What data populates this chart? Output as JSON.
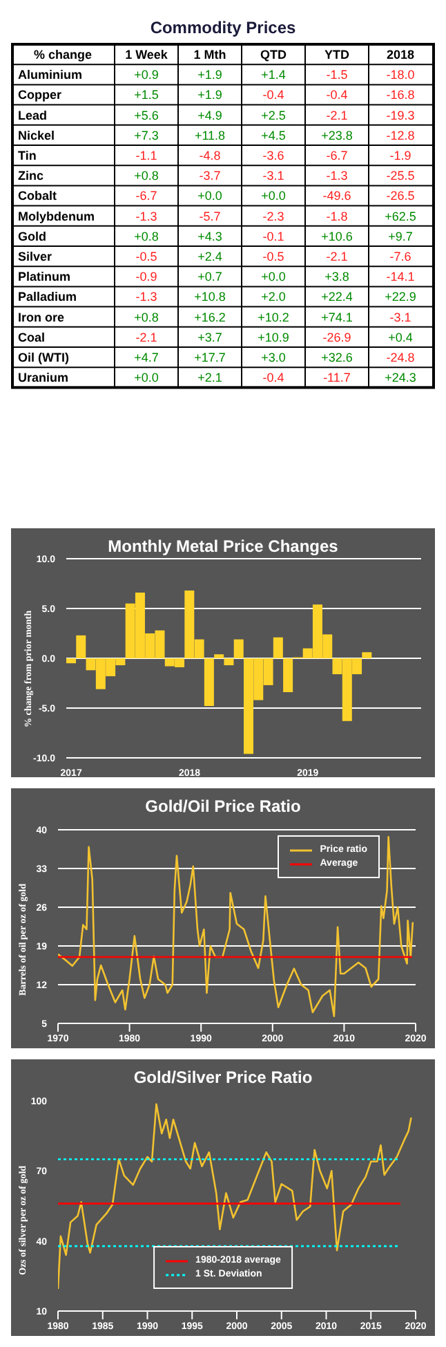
{
  "chart_data": [
    {
      "type": "heatmap",
      "title": "Commodity Prices",
      "ylabel": "% change",
      "categories": [
        "1 Week",
        "1 Mth",
        "QTD",
        "YTD",
        "2018"
      ],
      "y_categories": [
        "Aluminium",
        "Copper",
        "Lead",
        "Nickel",
        "Tin",
        "Zinc",
        "Cobalt",
        "Molybdenum",
        "Gold",
        "Silver",
        "Platinum",
        "Palladium",
        "Iron ore",
        "Coal",
        "Oil (WTI)",
        "Uranium"
      ],
      "cells": [
        [
          0.9,
          1.9,
          1.4,
          -1.5,
          -18.0
        ],
        [
          1.5,
          1.9,
          -0.4,
          -0.4,
          -16.8
        ],
        [
          5.6,
          4.9,
          2.5,
          -2.1,
          -19.3
        ],
        [
          7.3,
          11.8,
          4.5,
          23.8,
          -12.8
        ],
        [
          -1.1,
          -4.8,
          -3.6,
          -6.7,
          -1.9
        ],
        [
          0.8,
          -3.7,
          -3.1,
          -1.3,
          -25.5
        ],
        [
          -6.7,
          0.0,
          0.0,
          -49.6,
          -26.5
        ],
        [
          -1.3,
          -5.7,
          -2.3,
          -1.8,
          62.5
        ],
        [
          0.8,
          4.3,
          -0.1,
          10.6,
          9.7
        ],
        [
          -0.5,
          2.4,
          -0.5,
          -2.1,
          -7.6
        ],
        [
          -0.9,
          0.7,
          0.0,
          3.8,
          -14.1
        ],
        [
          -1.3,
          10.8,
          2.0,
          22.4,
          22.9
        ],
        [
          0.8,
          16.2,
          10.2,
          74.1,
          -3.1
        ],
        [
          -2.1,
          3.7,
          10.9,
          -26.9,
          0.4
        ],
        [
          4.7,
          17.7,
          3.0,
          32.6,
          -24.8
        ],
        [
          0.0,
          2.1,
          -0.4,
          -11.7,
          24.3
        ]
      ],
      "cell_labels": [
        [
          "+0.9",
          "+1.9",
          "+1.4",
          "-1.5",
          "-18.0"
        ],
        [
          "+1.5",
          "+1.9",
          "-0.4",
          "-0.4",
          "-16.8"
        ],
        [
          "+5.6",
          "+4.9",
          "+2.5",
          "-2.1",
          "-19.3"
        ],
        [
          "+7.3",
          "+11.8",
          "+4.5",
          "+23.8",
          "-12.8"
        ],
        [
          "-1.1",
          "-4.8",
          "-3.6",
          "-6.7",
          "-1.9"
        ],
        [
          "+0.8",
          "-3.7",
          "-3.1",
          "-1.3",
          "-25.5"
        ],
        [
          "-6.7",
          "+0.0",
          "+0.0",
          "-49.6",
          "-26.5"
        ],
        [
          "-1.3",
          "-5.7",
          "-2.3",
          "-1.8",
          "+62.5"
        ],
        [
          "+0.8",
          "+4.3",
          "-0.1",
          "+10.6",
          "+9.7"
        ],
        [
          "-0.5",
          "+2.4",
          "-0.5",
          "-2.1",
          "-7.6"
        ],
        [
          "-0.9",
          "+0.7",
          "+0.0",
          "+3.8",
          "-14.1"
        ],
        [
          "-1.3",
          "+10.8",
          "+2.0",
          "+22.4",
          "+22.9"
        ],
        [
          "+0.8",
          "+16.2",
          "+10.2",
          "+74.1",
          "-3.1"
        ],
        [
          "-2.1",
          "+3.7",
          "+10.9",
          "-26.9",
          "+0.4"
        ],
        [
          "+4.7",
          "+17.7",
          "+3.0",
          "+32.6",
          "-24.8"
        ],
        [
          "+0.0",
          "+2.1",
          "-0.4",
          "-11.7",
          "+24.3"
        ]
      ]
    },
    {
      "type": "bar",
      "title": "Monthly Metal Price Changes",
      "ylabel": "% change from prior month",
      "color": "#ffd42a",
      "grid": "y",
      "categories": [
        "2017",
        null,
        null,
        null,
        null,
        null,
        null,
        null,
        null,
        null,
        null,
        null,
        "2018",
        null,
        null,
        null,
        null,
        null,
        null,
        null,
        null,
        null,
        null,
        null,
        "2019",
        null,
        null,
        null,
        null,
        null,
        null,
        null,
        null,
        null,
        null,
        null
      ],
      "values": [
        -0.5,
        2.3,
        -1.2,
        -3.1,
        -1.8,
        -0.7,
        5.5,
        6.6,
        2.5,
        2.8,
        -0.8,
        -0.9,
        6.8,
        1.9,
        -4.8,
        0.4,
        -0.7,
        1.9,
        -9.6,
        -4.2,
        -2.7,
        2.1,
        -3.4,
        0.1,
        1.0,
        5.4,
        2.4,
        -1.6,
        -6.3,
        -1.6,
        0.6,
        null,
        null,
        null,
        null,
        null
      ],
      "ylim": [
        -10,
        10
      ],
      "yticks": [
        {
          "value": -10,
          "label": "-10.0"
        },
        {
          "value": -5,
          "label": "-5.0"
        },
        {
          "value": 0,
          "label": "0.0"
        },
        {
          "value": 5,
          "label": "5.0"
        },
        {
          "value": 10,
          "label": "10.0"
        }
      ]
    },
    {
      "type": "line",
      "title": "Gold/Oil Price Ratio",
      "ylabel": "Barrels of oil per oz of gold",
      "grid": "y",
      "legend": "top right",
      "xlim": [
        1970,
        2020
      ],
      "xticks": [
        1970,
        1980,
        1990,
        2000,
        2010,
        2020
      ],
      "ylim": [
        5,
        40
      ],
      "yticks": [
        5,
        12,
        19,
        26,
        33,
        40
      ],
      "series": [
        {
          "name": "Price ratio",
          "color": "#f2c230",
          "x": [
            1970,
            1971,
            1972,
            1973,
            1973.5,
            1974,
            1974.3,
            1974.8,
            1975.2,
            1975.5,
            1976,
            1977,
            1978,
            1979,
            1979.4,
            1980,
            1980.7,
            1981.5,
            1982.1,
            1982.8,
            1983.4,
            1984,
            1985,
            1985.3,
            1986,
            1986.3,
            1986.6,
            1987.3,
            1988,
            1988.5,
            1988.9,
            1989.5,
            1989.8,
            1990.4,
            1990.8,
            1991.3,
            1992,
            1993,
            1994,
            1994.1,
            1995,
            1996,
            1997,
            1998,
            1998.7,
            1999,
            1999.7,
            2000.2,
            2000.8,
            2002,
            2003,
            2004,
            2005,
            2005.6,
            2007,
            2008,
            2008.6,
            2009.1,
            2009.5,
            2010,
            2011,
            2012,
            2013,
            2013.8,
            2014.8,
            2015.2,
            2015.5,
            2016,
            2016.2,
            2016.6,
            2017,
            2017.5,
            2018,
            2018.5,
            2018.8,
            2018.9,
            2019.3,
            2019.6
          ],
          "values": [
            17.5,
            16.5,
            15.4,
            17,
            22.8,
            22,
            36.9,
            31,
            9.2,
            13,
            15.5,
            12,
            8.8,
            11,
            7.5,
            13,
            20.8,
            13,
            9.6,
            12,
            17.1,
            13,
            12,
            10.5,
            12,
            29.2,
            35.3,
            25,
            27,
            30,
            33.4,
            22,
            19,
            22,
            10.5,
            19,
            17,
            17,
            22,
            28.6,
            23,
            22,
            18,
            15,
            20,
            28,
            19,
            12.7,
            7.9,
            12,
            14.9,
            12,
            11,
            7,
            10,
            11,
            6.3,
            22.4,
            14,
            14,
            15,
            16,
            15,
            11.6,
            13,
            26.2,
            24,
            29,
            38.7,
            30,
            23,
            26,
            19,
            17,
            15.8,
            23.6,
            17,
            23.3
          ]
        },
        {
          "name": "Average",
          "color": "#ff0000",
          "x": [
            1970,
            2019.5
          ],
          "values": [
            17,
            17
          ]
        }
      ]
    },
    {
      "type": "line",
      "title": "Gold/Silver Price Ratio",
      "ylabel": "Ozs of silver per oz of gold",
      "grid": false,
      "legend": "bottom",
      "xlim": [
        1980,
        2020
      ],
      "xticks": [
        1980,
        1985,
        1990,
        1995,
        2000,
        2005,
        2010,
        2015,
        2020
      ],
      "ylim": [
        10,
        100
      ],
      "yticks": [
        10,
        40,
        70,
        100
      ],
      "series": [
        {
          "color": "#f2c230",
          "x": [
            1980,
            1980.3,
            1980.9,
            1981.4,
            1982.2,
            1982.6,
            1983.3,
            1983.6,
            1984.3,
            1985.4,
            1986.1,
            1986.8,
            1987.4,
            1988.4,
            1989.2,
            1990,
            1990.5,
            1991,
            1991.6,
            1992.1,
            1992.5,
            1992.9,
            1993.6,
            1994.3,
            1994.8,
            1995.3,
            1996.1,
            1996.9,
            1997.7,
            1998.1,
            1998.8,
            1999.6,
            2000.4,
            2001.2,
            2002.3,
            2003.3,
            2003.9,
            2004.3,
            2005,
            2006.2,
            2006.7,
            2007.4,
            2008.2,
            2008.7,
            2009.3,
            2010.1,
            2010.6,
            2011.2,
            2011.9,
            2012.8,
            2013.6,
            2014.4,
            2015,
            2015.7,
            2016.1,
            2016.5,
            2017,
            2017.9,
            2018.7,
            2019.2,
            2019.5
          ],
          "values": [
            19.5,
            42,
            34,
            48,
            50.7,
            56.6,
            39,
            35,
            47,
            51.7,
            55.6,
            75,
            68,
            64,
            71,
            76,
            74,
            98.6,
            86,
            92,
            84,
            92,
            83,
            74,
            71,
            82,
            72,
            78,
            60.5,
            45,
            60.5,
            50,
            56.6,
            57.6,
            68.3,
            78,
            74,
            56.6,
            64.4,
            61.5,
            49,
            52.7,
            54.7,
            79,
            70,
            62.5,
            70,
            36,
            52.7,
            55.6,
            62.5,
            67.4,
            74,
            74,
            81,
            68.3,
            71.3,
            76,
            83,
            87,
            92.8
          ]
        },
        {
          "name": "1980-2018 average",
          "color": "#ff0000",
          "x": [
            1980,
            2018.3
          ],
          "values": [
            56,
            56
          ]
        },
        {
          "name": "1 St. Deviation",
          "color": "#00ffff",
          "line_style": "dotted",
          "x": [
            1980,
            2018.3
          ],
          "values": [
            75,
            75
          ]
        },
        {
          "color": "#00ffff",
          "line_style": "dotted",
          "x": [
            1980,
            2018.3
          ],
          "values": [
            37.8,
            37.8
          ]
        }
      ]
    }
  ]
}
